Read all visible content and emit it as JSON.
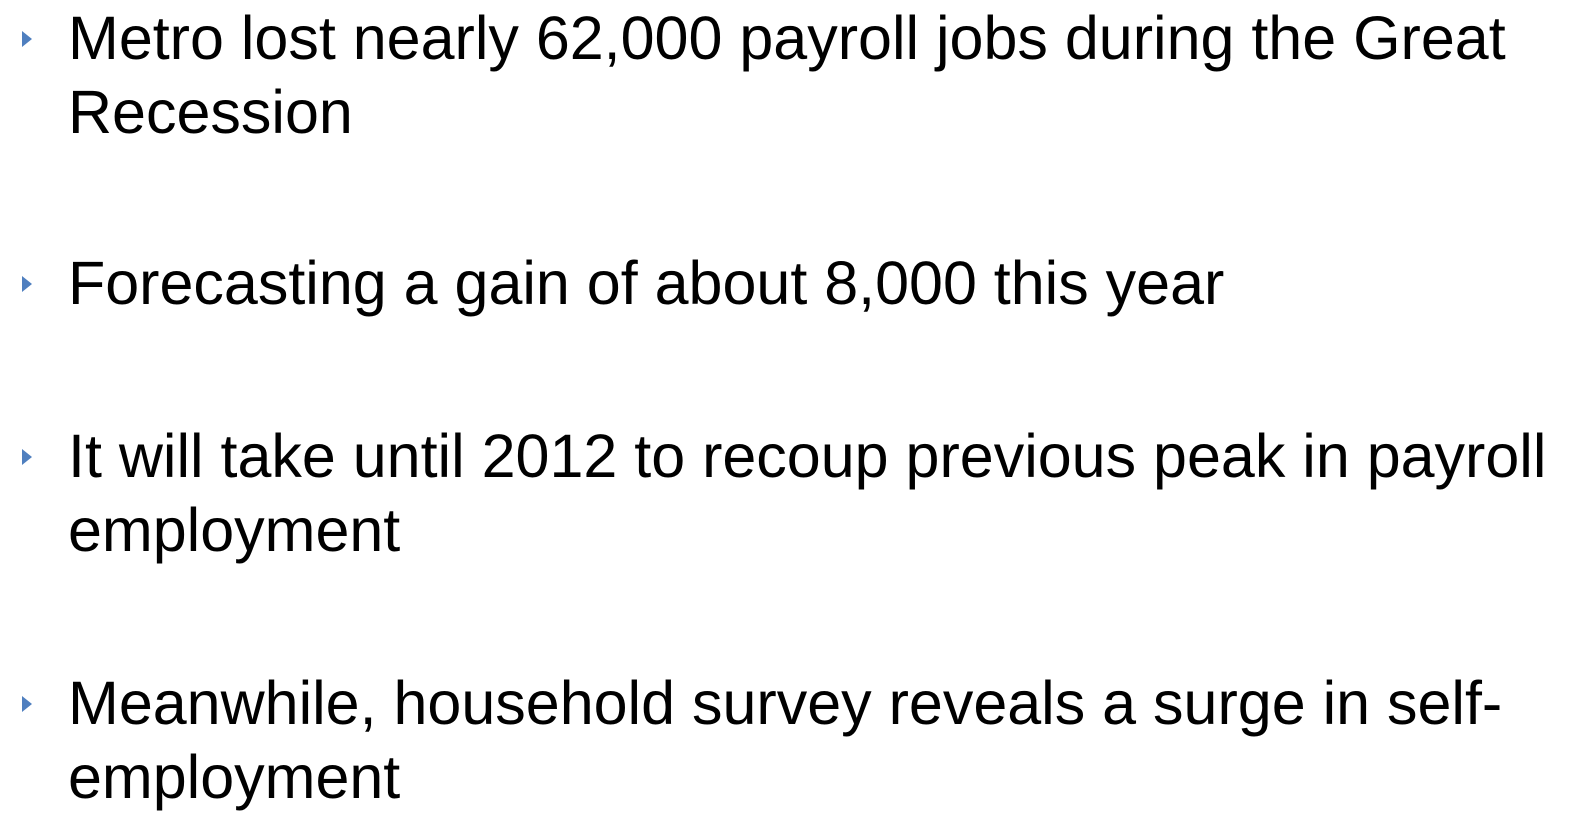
{
  "bullets": [
    {
      "text": "Metro lost nearly 62,000 payroll jobs during the Great Recession"
    },
    {
      "text": "Forecasting a gain of about 8,000 this year"
    },
    {
      "text": "It will take until 2012 to recoup previous peak in payroll employment"
    },
    {
      "text": "Meanwhile, household survey reveals a surge in self-employment"
    }
  ]
}
